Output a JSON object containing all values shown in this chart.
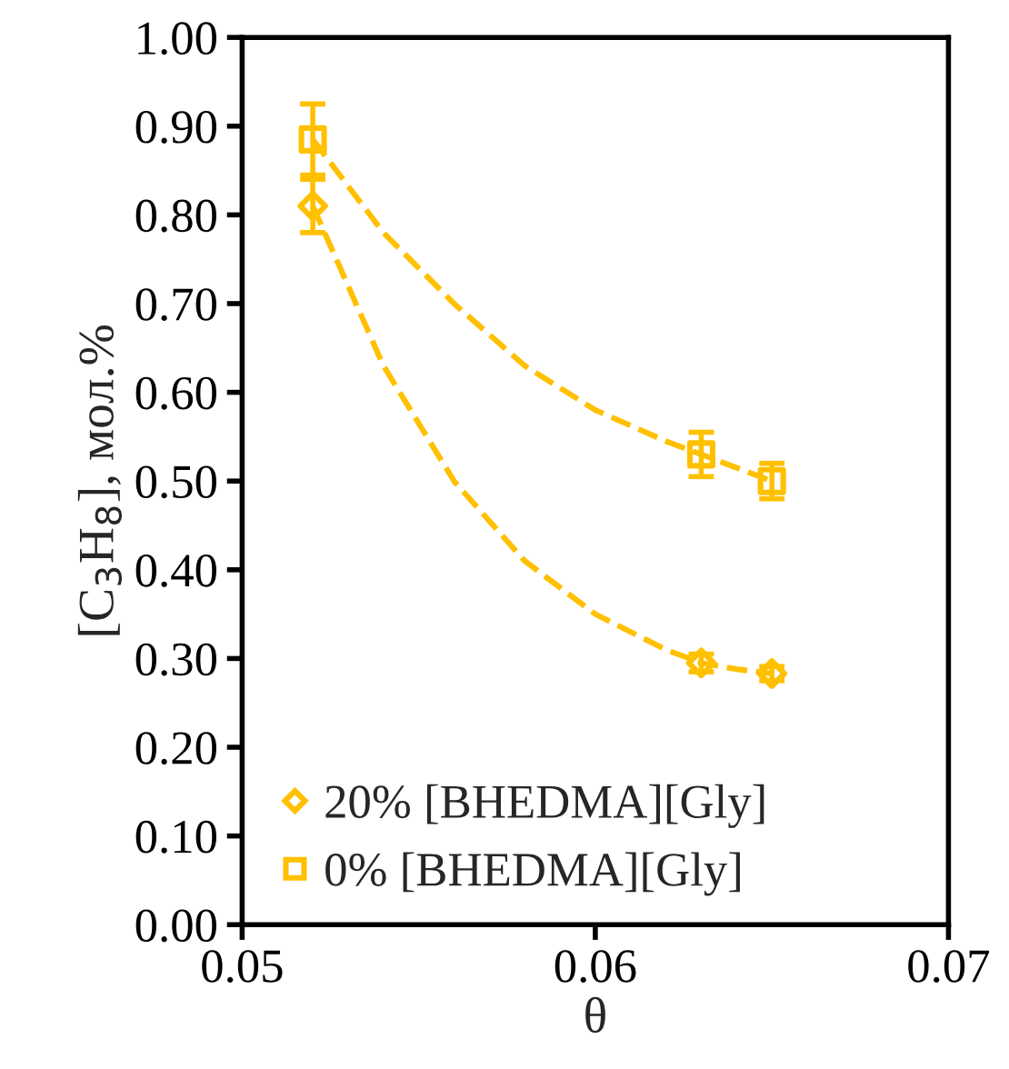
{
  "chart_data": {
    "type": "scatter",
    "xlabel": "θ",
    "ylabel": "[C$_{3}$H$_{8}$], мол.%",
    "xlim": [
      0.05,
      0.07
    ],
    "xticks": [
      0.05,
      0.06,
      0.07
    ],
    "ylim": [
      0,
      1.0
    ],
    "yticks": [
      {
        "value": 0,
        "label": "0.00"
      },
      {
        "value": 0.1,
        "label": "0.10"
      },
      {
        "value": 0.2,
        "label": "0.20"
      },
      {
        "value": 0.3,
        "label": "0.30"
      },
      {
        "value": 0.4,
        "label": "0.40"
      },
      {
        "value": 0.5,
        "label": "0.50"
      },
      {
        "value": 0.6,
        "label": "0.60"
      },
      {
        "value": 0.7,
        "label": "0.70"
      },
      {
        "value": 0.8,
        "label": "0.80"
      },
      {
        "value": 0.9,
        "label": "0.90"
      },
      {
        "value": 1.0,
        "label": "1.00"
      }
    ],
    "grid": false,
    "legend": "bottom left",
    "series": [
      {
        "name": "20% [BHEDMA][Gly]",
        "color": "#ffc000",
        "marker": "diamond",
        "x": [
          0.052,
          0.063,
          0.065
        ],
        "values": [
          0.81,
          0.295,
          0.283
        ],
        "errors": [
          0.03,
          0.01,
          0.008
        ]
      },
      {
        "name": "0% [BHEDMA][Gly]",
        "color": "#ffc000",
        "marker": "square",
        "x": [
          0.052,
          0.063,
          0.065
        ],
        "values": [
          0.885,
          0.53,
          0.5
        ],
        "errors": [
          0.04,
          0.025,
          0.02
        ]
      },
      {
        "type": "line",
        "color": "#ffc000",
        "marker": "none",
        "line_style": "dashed",
        "x": [
          0.052,
          0.054,
          0.056,
          0.058,
          0.06,
          0.062,
          0.063,
          0.064,
          0.065
        ],
        "values": [
          0.81,
          0.63,
          0.5,
          0.41,
          0.35,
          0.31,
          0.295,
          0.288,
          0.283
        ]
      },
      {
        "type": "line",
        "color": "#ffc000",
        "marker": "none",
        "line_style": "dashed",
        "x": [
          0.052,
          0.054,
          0.056,
          0.058,
          0.06,
          0.062,
          0.063,
          0.064,
          0.065
        ],
        "values": [
          0.885,
          0.78,
          0.7,
          0.63,
          0.58,
          0.545,
          0.53,
          0.515,
          0.5
        ]
      }
    ]
  }
}
